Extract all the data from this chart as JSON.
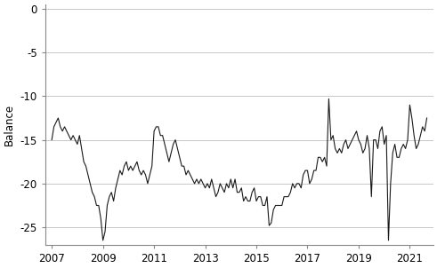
{
  "title": "",
  "ylabel": "Balance",
  "xlabel": "",
  "xlim_start": 2006.75,
  "xlim_end": 2021.92,
  "ylim": [
    -27.0,
    0.5
  ],
  "yticks": [
    0,
    -5,
    -10,
    -15,
    -20,
    -25
  ],
  "xticks": [
    2007,
    2009,
    2011,
    2013,
    2015,
    2017,
    2019,
    2021
  ],
  "line_color": "#1a1a1a",
  "line_width": 0.8,
  "background_color": "#ffffff",
  "grid_color": "#c8c8c8",
  "data": {
    "dates": [
      2007.0,
      2007.083,
      2007.167,
      2007.25,
      2007.333,
      2007.417,
      2007.5,
      2007.583,
      2007.667,
      2007.75,
      2007.833,
      2007.917,
      2008.0,
      2008.083,
      2008.167,
      2008.25,
      2008.333,
      2008.417,
      2008.5,
      2008.583,
      2008.667,
      2008.75,
      2008.833,
      2008.917,
      2009.0,
      2009.083,
      2009.167,
      2009.25,
      2009.333,
      2009.417,
      2009.5,
      2009.583,
      2009.667,
      2009.75,
      2009.833,
      2009.917,
      2010.0,
      2010.083,
      2010.167,
      2010.25,
      2010.333,
      2010.417,
      2010.5,
      2010.583,
      2010.667,
      2010.75,
      2010.833,
      2010.917,
      2011.0,
      2011.083,
      2011.167,
      2011.25,
      2011.333,
      2011.417,
      2011.5,
      2011.583,
      2011.667,
      2011.75,
      2011.833,
      2011.917,
      2012.0,
      2012.083,
      2012.167,
      2012.25,
      2012.333,
      2012.417,
      2012.5,
      2012.583,
      2012.667,
      2012.75,
      2012.833,
      2012.917,
      2013.0,
      2013.083,
      2013.167,
      2013.25,
      2013.333,
      2013.417,
      2013.5,
      2013.583,
      2013.667,
      2013.75,
      2013.833,
      2013.917,
      2014.0,
      2014.083,
      2014.167,
      2014.25,
      2014.333,
      2014.417,
      2014.5,
      2014.583,
      2014.667,
      2014.75,
      2014.833,
      2014.917,
      2015.0,
      2015.083,
      2015.167,
      2015.25,
      2015.333,
      2015.417,
      2015.5,
      2015.583,
      2015.667,
      2015.75,
      2015.833,
      2015.917,
      2016.0,
      2016.083,
      2016.167,
      2016.25,
      2016.333,
      2016.417,
      2016.5,
      2016.583,
      2016.667,
      2016.75,
      2016.833,
      2016.917,
      2017.0,
      2017.083,
      2017.167,
      2017.25,
      2017.333,
      2017.417,
      2017.5,
      2017.583,
      2017.667,
      2017.75,
      2017.833,
      2017.917,
      2018.0,
      2018.083,
      2018.167,
      2018.25,
      2018.333,
      2018.417,
      2018.5,
      2018.583,
      2018.667,
      2018.75,
      2018.833,
      2018.917,
      2019.0,
      2019.083,
      2019.167,
      2019.25,
      2019.333,
      2019.417,
      2019.5,
      2019.583,
      2019.667,
      2019.75,
      2019.833,
      2019.917,
      2020.0,
      2020.083,
      2020.167,
      2020.25,
      2020.333,
      2020.417,
      2020.5,
      2020.583,
      2020.667,
      2020.75,
      2020.833,
      2020.917,
      2021.0,
      2021.083,
      2021.167,
      2021.25,
      2021.333,
      2021.417,
      2021.5,
      2021.583,
      2021.667
    ],
    "values": [
      -15.0,
      -13.5,
      -13.0,
      -12.5,
      -13.5,
      -14.0,
      -13.5,
      -14.0,
      -14.5,
      -15.0,
      -14.5,
      -15.0,
      -15.5,
      -14.5,
      -16.0,
      -17.5,
      -18.0,
      -19.0,
      -20.0,
      -21.0,
      -21.5,
      -22.5,
      -22.5,
      -24.0,
      -26.5,
      -25.5,
      -22.5,
      -21.5,
      -21.0,
      -22.0,
      -20.5,
      -19.5,
      -18.5,
      -19.0,
      -18.0,
      -17.5,
      -18.5,
      -18.0,
      -18.5,
      -18.0,
      -17.5,
      -18.5,
      -19.0,
      -18.5,
      -19.0,
      -20.0,
      -19.0,
      -18.0,
      -14.0,
      -13.5,
      -13.5,
      -14.5,
      -14.5,
      -15.5,
      -16.5,
      -17.5,
      -16.5,
      -15.5,
      -15.0,
      -16.0,
      -17.0,
      -18.0,
      -18.0,
      -19.0,
      -18.5,
      -19.0,
      -19.5,
      -20.0,
      -19.5,
      -20.0,
      -19.5,
      -20.0,
      -20.5,
      -20.0,
      -20.5,
      -19.5,
      -20.5,
      -21.5,
      -21.0,
      -20.0,
      -20.5,
      -21.0,
      -20.0,
      -20.5,
      -19.5,
      -20.5,
      -19.5,
      -21.0,
      -21.0,
      -20.5,
      -22.0,
      -21.5,
      -22.0,
      -22.0,
      -21.0,
      -20.5,
      -22.0,
      -21.5,
      -21.5,
      -22.5,
      -22.5,
      -21.5,
      -24.8,
      -24.5,
      -23.0,
      -22.5,
      -22.5,
      -22.5,
      -22.5,
      -21.5,
      -21.5,
      -21.5,
      -21.0,
      -20.0,
      -20.5,
      -20.0,
      -20.0,
      -20.5,
      -19.0,
      -18.5,
      -18.5,
      -20.0,
      -19.5,
      -18.5,
      -18.5,
      -17.0,
      -17.0,
      -17.5,
      -17.0,
      -18.0,
      -10.3,
      -15.0,
      -14.5,
      -16.0,
      -16.5,
      -16.0,
      -16.5,
      -15.5,
      -15.0,
      -16.0,
      -15.5,
      -15.0,
      -14.5,
      -14.0,
      -15.0,
      -15.5,
      -16.5,
      -16.0,
      -14.5,
      -16.0,
      -21.5,
      -15.0,
      -15.0,
      -16.0,
      -14.0,
      -13.5,
      -15.5,
      -14.5,
      -26.5,
      -20.0,
      -16.5,
      -15.5,
      -17.0,
      -17.0,
      -16.0,
      -15.5,
      -16.0,
      -15.0,
      -11.0,
      -12.5,
      -14.5,
      -16.0,
      -15.5,
      -14.5,
      -13.5,
      -14.0,
      -12.5
    ]
  }
}
